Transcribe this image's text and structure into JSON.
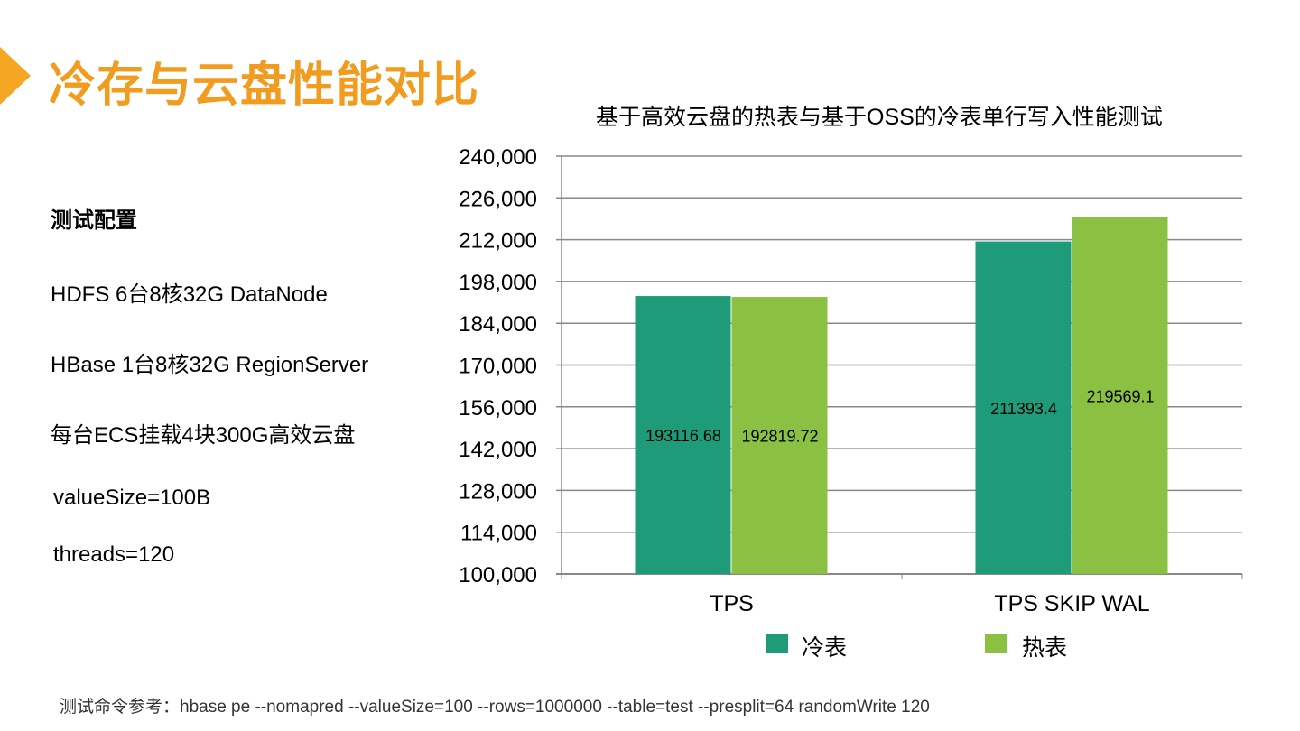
{
  "slide": {
    "title": "冷存与云盘性能对比",
    "config_title": "测试配置",
    "config_lines": [
      "HDFS  6台8核32G DataNode",
      "HBase 1台8核32G RegionServer",
      "每台ECS挂载4块300G高效云盘",
      "valueSize=100B",
      "threads=120"
    ],
    "footer": "测试命令参考：hbase pe --nomapred --valueSize=100 --rows=1000000 --table=test  --presplit=64 randomWrite 120",
    "accent": "#f19c1f"
  },
  "chart_data": {
    "type": "bar",
    "title": "基于高效云盘的热表与基于OSS的冷表单行写入性能测试",
    "categories": [
      "TPS",
      "TPS SKIP WAL"
    ],
    "series": [
      {
        "name": "冷表",
        "color": "#1e9b78",
        "values": [
          193116.68,
          211393.4
        ],
        "labels": [
          "193116.68",
          "211393.4"
        ]
      },
      {
        "name": "热表",
        "color": "#8bc143",
        "values": [
          192819.72,
          219569.1
        ],
        "labels": [
          "192819.72",
          "219569.1"
        ]
      }
    ],
    "ylim": [
      100000,
      240000
    ],
    "yticks": [
      100000,
      114000,
      128000,
      142000,
      156000,
      170000,
      184000,
      198000,
      212000,
      226000,
      240000
    ],
    "ytick_labels": [
      "100,000",
      "114,000",
      "128,000",
      "142,000",
      "156,000",
      "170,000",
      "184,000",
      "198,000",
      "212,000",
      "226,000",
      "240,000"
    ],
    "grid": true,
    "legend": "bottom",
    "xlabel": "",
    "ylabel": ""
  }
}
